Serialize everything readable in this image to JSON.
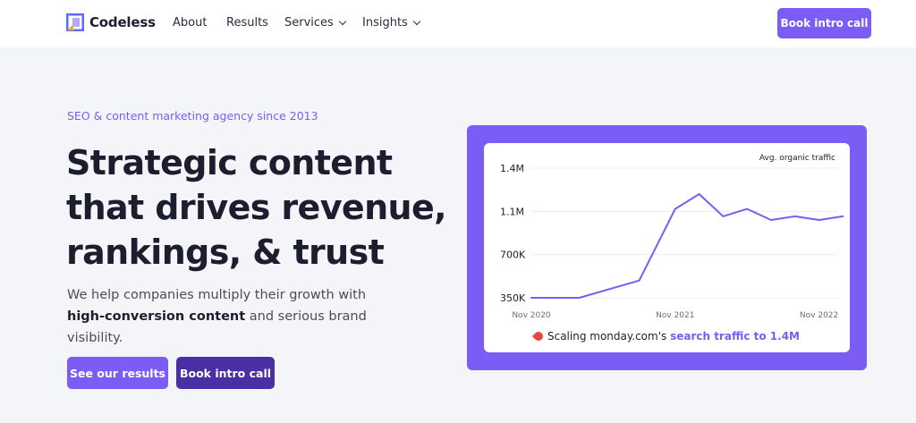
{
  "nav": {
    "brand": "Codeless",
    "links": [
      {
        "label": "About",
        "has_dropdown": false
      },
      {
        "label": "Results",
        "has_dropdown": false
      },
      {
        "label": "Services",
        "has_dropdown": true
      },
      {
        "label": "Insights",
        "has_dropdown": true
      }
    ],
    "cta_label": "Book intro call"
  },
  "hero": {
    "eyebrow": "SEO & content marketing agency since 2013",
    "headline_lines": [
      "Strategic content",
      "that drives revenue,",
      "rankings, & trust"
    ],
    "lead_pre": "We help companies multiply their growth with ",
    "lead_bold": "high-conversion content",
    "lead_post": " and serious brand visibility.",
    "primary_button": "See our results",
    "secondary_button": "Book intro call"
  },
  "caption": {
    "emoji_icon": "rocket-icon",
    "text": "Scaling monday.com's ",
    "highlight": "search traffic to 1.4M"
  },
  "colors": {
    "accent": "#7b5cf5",
    "accent_dark": "#4a2ea3",
    "text": "#1c1d2e",
    "bg": "#f4f5f9"
  },
  "chart_data": {
    "type": "line",
    "title": "Avg. organic traffic",
    "xlabel": "",
    "ylabel": "",
    "y_ticks": [
      "1.4M",
      "1.1M",
      "700K",
      "350K"
    ],
    "y_tick_values": [
      1400000,
      1050000,
      700000,
      350000
    ],
    "x_ticks": [
      "Nov 2020",
      "Nov 2021",
      "Nov 2022"
    ],
    "x_tick_values": [
      0,
      12,
      24
    ],
    "ylim": [
      350000,
      1400000
    ],
    "xlim": [
      0,
      25
    ],
    "grid": true,
    "series": [
      {
        "x": [
          0,
          4,
          9,
          12,
          14,
          16,
          18,
          20,
          22,
          24,
          26
        ],
        "values": [
          350000,
          350000,
          490000,
          1070000,
          1190000,
          1010000,
          1070000,
          980000,
          1010000,
          980000,
          1010000
        ]
      }
    ]
  }
}
